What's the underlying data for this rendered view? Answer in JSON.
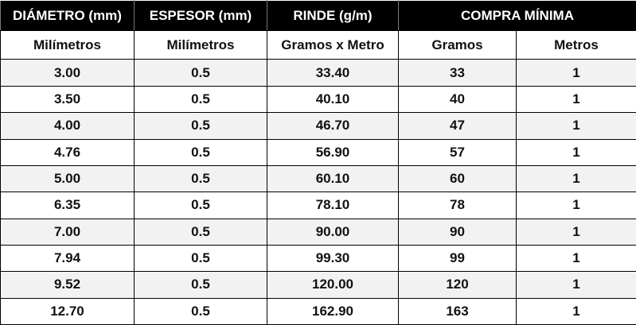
{
  "table": {
    "header": [
      "DIÁMETRO (mm)",
      "ESPESOR (mm)",
      "RINDE (g/m)",
      "COMPRA MÍNIMA"
    ],
    "subheader": [
      "Milímetros",
      "Milímetros",
      "Gramos x Metro",
      "Gramos",
      "Metros"
    ],
    "rows": [
      [
        "3.00",
        "0.5",
        "33.40",
        "33",
        "1"
      ],
      [
        "3.50",
        "0.5",
        "40.10",
        "40",
        "1"
      ],
      [
        "4.00",
        "0.5",
        "46.70",
        "47",
        "1"
      ],
      [
        "4.76",
        "0.5",
        "56.90",
        "57",
        "1"
      ],
      [
        "5.00",
        "0.5",
        "60.10",
        "60",
        "1"
      ],
      [
        "6.35",
        "0.5",
        "78.10",
        "78",
        "1"
      ],
      [
        "7.00",
        "0.5",
        "90.00",
        "90",
        "1"
      ],
      [
        "7.94",
        "0.5",
        "99.30",
        "99",
        "1"
      ],
      [
        "9.52",
        "0.5",
        "120.00",
        "120",
        "1"
      ],
      [
        "12.70",
        "0.5",
        "162.90",
        "163",
        "1"
      ]
    ]
  }
}
